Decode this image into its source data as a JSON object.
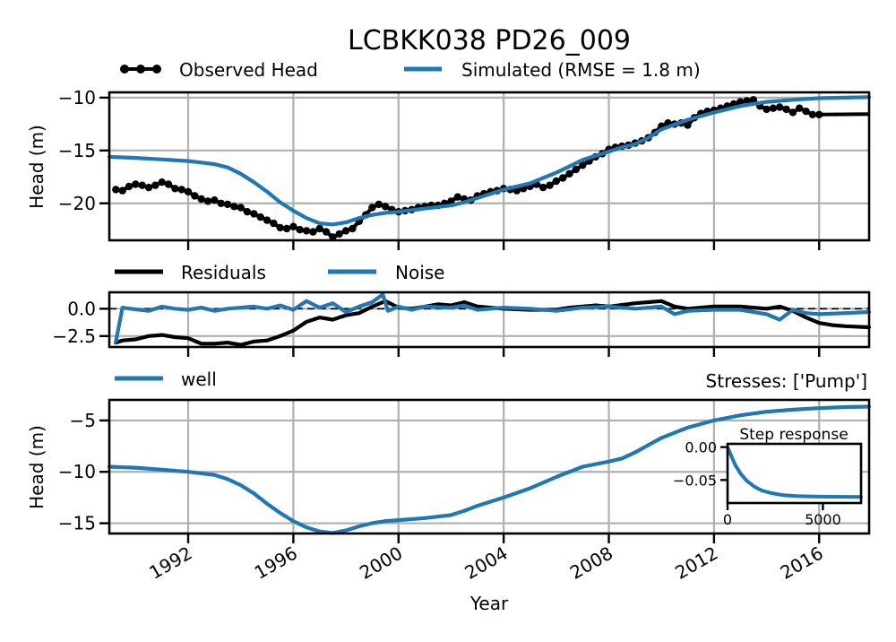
{
  "colors": {
    "observed": "#000000",
    "model": "#1f77b4",
    "grid": "#b0b0b0",
    "zero_line": "#000000"
  },
  "chart_data": [
    {
      "type": "line",
      "title": "LCBKK038 PD26_009",
      "xlabel": "",
      "ylabel": "Head (m)",
      "xlim": [
        1989.0,
        2017.9
      ],
      "ylim": [
        -23.5,
        -9.5
      ],
      "yticks": [
        -10,
        -15,
        -20
      ],
      "ytick_labels": [
        "−10",
        "−15",
        "−20"
      ],
      "grid": true,
      "legend": {
        "placement": "top-left, above axes, two columns",
        "entries": [
          "Observed Head",
          "Simulated (RMSE = 1.8 m)"
        ]
      },
      "series": [
        {
          "name": "Observed Head",
          "color": "#000000",
          "marker": "circle",
          "x": [
            1989.25,
            1989.5,
            1989.75,
            1990.0,
            1990.25,
            1990.5,
            1990.75,
            1991.0,
            1991.25,
            1991.5,
            1991.75,
            1992.0,
            1992.25,
            1992.5,
            1992.75,
            1993.0,
            1993.25,
            1993.5,
            1993.75,
            1994.0,
            1994.25,
            1994.5,
            1994.75,
            1995.0,
            1995.25,
            1995.5,
            1995.75,
            1996.0,
            1996.25,
            1996.5,
            1996.75,
            1997.0,
            1997.25,
            1997.5,
            1997.75,
            1998.0,
            1998.25,
            1998.5,
            1998.75,
            1999.0,
            1999.25,
            1999.5,
            1999.75,
            2000.0,
            2000.25,
            2000.5,
            2000.75,
            2001.0,
            2001.25,
            2001.5,
            2001.75,
            2002.0,
            2002.25,
            2002.5,
            2002.75,
            2003.0,
            2003.25,
            2003.5,
            2003.75,
            2004.0,
            2004.25,
            2004.5,
            2004.75,
            2005.0,
            2005.25,
            2005.5,
            2005.75,
            2006.0,
            2006.25,
            2006.5,
            2006.75,
            2007.0,
            2007.25,
            2007.5,
            2007.75,
            2008.0,
            2008.25,
            2008.5,
            2008.75,
            2009.0,
            2009.25,
            2009.5,
            2009.75,
            2010.0,
            2010.25,
            2010.5,
            2010.75,
            2011.0,
            2011.25,
            2011.5,
            2011.75,
            2012.0,
            2012.25,
            2012.5,
            2012.75,
            2013.0,
            2013.25,
            2013.5,
            2013.75,
            2014.0,
            2014.25,
            2014.5,
            2014.75,
            2015.0,
            2015.25,
            2015.5,
            2015.75,
            2016.0
          ],
          "y": [
            -18.7,
            -18.8,
            -18.4,
            -18.2,
            -18.3,
            -18.5,
            -18.3,
            -18.0,
            -18.2,
            -18.6,
            -18.7,
            -18.9,
            -19.3,
            -19.6,
            -19.8,
            -19.7,
            -20.0,
            -20.1,
            -20.3,
            -20.4,
            -20.8,
            -21.0,
            -21.3,
            -21.6,
            -21.9,
            -22.3,
            -22.4,
            -22.2,
            -22.5,
            -22.6,
            -22.7,
            -22.4,
            -22.7,
            -23.2,
            -22.9,
            -22.6,
            -22.4,
            -21.7,
            -21.1,
            -20.4,
            -20.1,
            -20.3,
            -20.6,
            -20.8,
            -20.7,
            -20.6,
            -20.4,
            -20.3,
            -20.2,
            -20.2,
            -20.0,
            -19.8,
            -19.4,
            -19.6,
            -19.7,
            -19.3,
            -19.1,
            -18.9,
            -18.8,
            -18.6,
            -18.7,
            -18.8,
            -18.6,
            -18.4,
            -18.2,
            -18.5,
            -18.3,
            -17.9,
            -17.6,
            -17.2,
            -16.8,
            -16.4,
            -16.0,
            -15.6,
            -15.3,
            -14.9,
            -14.7,
            -14.6,
            -14.5,
            -14.3,
            -14.1,
            -13.8,
            -13.3,
            -12.7,
            -12.4,
            -12.5,
            -12.4,
            -12.6,
            -11.9,
            -11.5,
            -11.3,
            -11.2,
            -11.0,
            -10.8,
            -10.6,
            -10.4,
            -10.3,
            -10.2,
            -10.8,
            -11.1,
            -11.0,
            -10.9,
            -11.1,
            -11.4,
            -11.0,
            -11.3,
            -11.6,
            -11.6
          ],
          "trailing_segment": {
            "x": [
              2016.0,
              2017.9
            ],
            "y": [
              -11.6,
              -11.55
            ]
          }
        },
        {
          "name": "Simulated (RMSE = 1.8 m)",
          "color": "#1f77b4",
          "x": [
            1989.0,
            1990.0,
            1991.0,
            1992.0,
            1993.0,
            1993.5,
            1994.0,
            1994.5,
            1995.0,
            1995.5,
            1996.0,
            1996.5,
            1997.0,
            1997.5,
            1998.0,
            1998.5,
            1999.0,
            1999.5,
            2000.0,
            2001.0,
            2002.0,
            2002.5,
            2003.0,
            2003.5,
            2004.0,
            2005.0,
            2006.0,
            2007.0,
            2008.0,
            2008.5,
            2009.0,
            2009.5,
            2010.0,
            2011.0,
            2012.0,
            2013.0,
            2014.0,
            2015.0,
            2016.0,
            2017.0,
            2017.9
          ],
          "y": [
            -15.6,
            -15.7,
            -15.85,
            -16.0,
            -16.3,
            -16.6,
            -17.2,
            -18.0,
            -18.9,
            -19.9,
            -20.7,
            -21.4,
            -21.9,
            -22.0,
            -21.8,
            -21.4,
            -21.1,
            -20.9,
            -20.8,
            -20.5,
            -20.2,
            -19.9,
            -19.5,
            -19.1,
            -18.7,
            -18.1,
            -17.1,
            -15.9,
            -15.1,
            -14.7,
            -14.4,
            -13.8,
            -13.0,
            -12.1,
            -11.4,
            -10.8,
            -10.4,
            -10.2,
            -10.05,
            -10.0,
            -9.95
          ]
        }
      ]
    },
    {
      "type": "line",
      "title": "",
      "xlabel": "",
      "ylabel": "",
      "xlim": [
        1989.0,
        2017.9
      ],
      "ylim": [
        -3.5,
        1.5
      ],
      "yticks": [
        0.0,
        -2.5
      ],
      "ytick_labels": [
        "0.0",
        "−2.5"
      ],
      "zero_line": "dashed",
      "grid": true,
      "legend": {
        "placement": "top-left, above axes, two columns",
        "entries": [
          "Residuals",
          "Noise"
        ]
      },
      "series": [
        {
          "name": "Residuals",
          "color": "#000000",
          "x": [
            1989.25,
            1989.5,
            1990.0,
            1990.5,
            1991.0,
            1991.5,
            1992.0,
            1992.5,
            1993.0,
            1993.5,
            1994.0,
            1994.5,
            1995.0,
            1995.5,
            1996.0,
            1996.5,
            1997.0,
            1997.5,
            1998.0,
            1998.5,
            1999.0,
            1999.5,
            2000.0,
            2000.5,
            2001.0,
            2001.5,
            2002.0,
            2002.5,
            2003.0,
            2003.5,
            2004.0,
            2005.0,
            2006.0,
            2006.5,
            2007.0,
            2007.5,
            2008.0,
            2009.0,
            2010.0,
            2010.5,
            2011.0,
            2012.0,
            2013.0,
            2014.0,
            2014.5,
            2015.0,
            2015.5,
            2016.0,
            2016.5,
            2017.0,
            2017.9
          ],
          "y": [
            -3.1,
            -2.9,
            -2.8,
            -2.5,
            -2.4,
            -2.6,
            -2.7,
            -3.2,
            -3.2,
            -3.1,
            -3.3,
            -3.0,
            -2.9,
            -2.5,
            -2.0,
            -1.2,
            -0.8,
            -1.0,
            -0.6,
            -0.4,
            0.2,
            0.7,
            0.1,
            0.0,
            0.2,
            0.4,
            0.3,
            0.6,
            0.2,
            0.1,
            0.0,
            -0.1,
            -0.1,
            0.1,
            0.2,
            0.3,
            0.2,
            0.5,
            0.7,
            0.2,
            0.0,
            0.2,
            0.2,
            0.0,
            0.2,
            -0.2,
            -0.8,
            -1.3,
            -1.5,
            -1.6,
            -1.7
          ]
        },
        {
          "name": "Noise",
          "color": "#1f77b4",
          "x": [
            1989.25,
            1989.5,
            1989.8,
            1990.5,
            1991.0,
            1991.5,
            1992.0,
            1992.5,
            1993.0,
            1993.5,
            1994.0,
            1994.5,
            1995.0,
            1995.5,
            1996.0,
            1996.5,
            1997.0,
            1997.5,
            1998.0,
            1998.5,
            1999.0,
            1999.4,
            1999.6,
            2000.0,
            2000.5,
            2001.0,
            2002.0,
            2002.5,
            2003.0,
            2004.0,
            2005.0,
            2006.0,
            2007.0,
            2008.0,
            2009.0,
            2010.0,
            2010.5,
            2011.0,
            2012.0,
            2013.0,
            2014.0,
            2014.5,
            2015.0,
            2015.5,
            2016.0,
            2017.0,
            2017.9
          ],
          "y": [
            -3.0,
            0.1,
            0.0,
            -0.2,
            0.2,
            0.0,
            -0.1,
            0.1,
            -0.2,
            0.0,
            0.1,
            0.2,
            0.0,
            0.3,
            -0.1,
            0.7,
            0.1,
            0.5,
            -0.3,
            0.2,
            0.6,
            1.3,
            -0.2,
            0.2,
            -0.1,
            0.2,
            0.1,
            0.3,
            -0.1,
            0.1,
            0.0,
            -0.2,
            0.1,
            0.2,
            0.0,
            0.2,
            -0.5,
            -0.2,
            -0.1,
            -0.1,
            -0.5,
            -1.0,
            -0.1,
            -0.4,
            -0.5,
            -0.4,
            -0.3
          ]
        }
      ]
    },
    {
      "type": "line",
      "title": "Stresses: ['Pump']",
      "xlabel": "Year",
      "ylabel": "Head (m)",
      "xlim": [
        1989.0,
        2017.9
      ],
      "ylim": [
        -16.0,
        -3.0
      ],
      "yticks": [
        -5,
        -10,
        -15
      ],
      "ytick_labels": [
        "−5",
        "−10",
        "−15"
      ],
      "xticks": [
        1992,
        1996,
        2000,
        2004,
        2008,
        2012,
        2016
      ],
      "xtick_labels": [
        "1992",
        "1996",
        "2000",
        "2004",
        "2008",
        "2012",
        "2016"
      ],
      "grid": true,
      "legend": {
        "placement": "top-left, above axes",
        "entries": [
          "well"
        ]
      },
      "series": [
        {
          "name": "well",
          "color": "#1f77b4",
          "x": [
            1989.0,
            1990.0,
            1991.0,
            1992.0,
            1993.0,
            1993.5,
            1994.0,
            1994.5,
            1995.0,
            1995.5,
            1996.0,
            1996.5,
            1997.0,
            1997.5,
            1998.0,
            1998.5,
            1999.0,
            1999.5,
            2000.0,
            2001.0,
            2002.0,
            2002.5,
            2003.0,
            2003.5,
            2004.0,
            2005.0,
            2006.0,
            2007.0,
            2008.0,
            2008.5,
            2009.0,
            2009.5,
            2010.0,
            2011.0,
            2012.0,
            2013.0,
            2014.0,
            2015.0,
            2016.0,
            2017.0,
            2017.9
          ],
          "y": [
            -9.5,
            -9.6,
            -9.8,
            -10.0,
            -10.3,
            -10.7,
            -11.3,
            -12.1,
            -13.1,
            -14.0,
            -14.8,
            -15.4,
            -15.8,
            -15.95,
            -15.7,
            -15.3,
            -15.0,
            -14.8,
            -14.7,
            -14.5,
            -14.2,
            -13.8,
            -13.3,
            -12.9,
            -12.5,
            -11.6,
            -10.5,
            -9.5,
            -9.0,
            -8.7,
            -8.1,
            -7.4,
            -6.7,
            -5.7,
            -5.0,
            -4.5,
            -4.15,
            -3.95,
            -3.8,
            -3.7,
            -3.65
          ]
        }
      ]
    },
    {
      "type": "line",
      "title": "Step response",
      "xlabel": "",
      "ylabel": "",
      "xlim": [
        0,
        7000
      ],
      "ylim": [
        -0.085,
        0.005
      ],
      "yticks": [
        0.0,
        -0.05
      ],
      "ytick_labels": [
        "0.00",
        "−0.05"
      ],
      "xticks": [
        0,
        5000
      ],
      "xtick_labels": [
        "0",
        "5000"
      ],
      "grid": false,
      "series": [
        {
          "name": "",
          "color": "#1f77b4",
          "x": [
            0,
            200,
            400,
            700,
            1000,
            1400,
            1800,
            2300,
            2900,
            3600,
            4500,
            5500,
            7000
          ],
          "y": [
            0.0,
            -0.014,
            -0.027,
            -0.041,
            -0.051,
            -0.06,
            -0.066,
            -0.07,
            -0.073,
            -0.0745,
            -0.0752,
            -0.0755,
            -0.0757
          ]
        }
      ]
    }
  ]
}
